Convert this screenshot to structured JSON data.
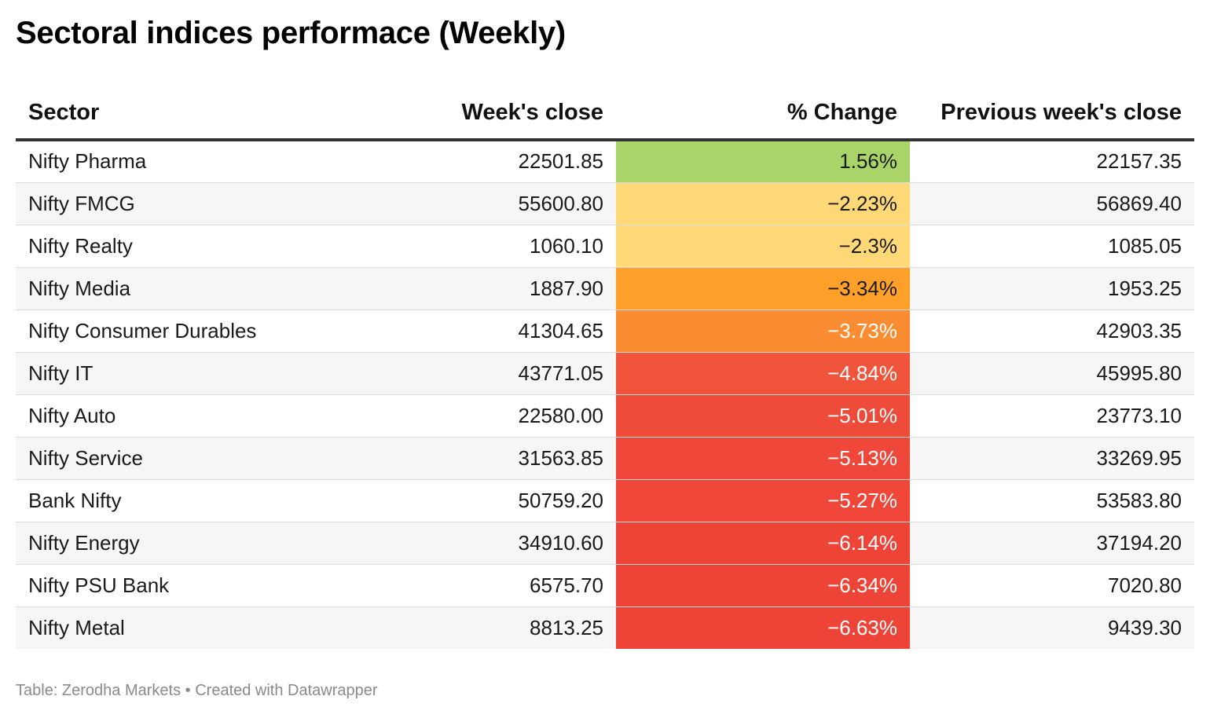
{
  "title": "Sectoral indices performace (Weekly)",
  "footer": "Table: Zerodha Markets • Created with Datawrapper",
  "chart_data": {
    "type": "table",
    "columns": [
      "Sector",
      "Week's close",
      "% Change",
      "Previous week's close"
    ],
    "rows": [
      {
        "sector": "Nifty Pharma",
        "close": "22501.85",
        "change": "1.56%",
        "prev_close": "22157.35",
        "change_value": 1.56,
        "color": "#a8d469",
        "text_color": "#1a1a1a"
      },
      {
        "sector": "Nifty FMCG",
        "close": "55600.80",
        "change": "−2.23%",
        "prev_close": "56869.40",
        "change_value": -2.23,
        "color": "#ffd878",
        "text_color": "#1a1a1a"
      },
      {
        "sector": "Nifty Realty",
        "close": "1060.10",
        "change": "−2.3%",
        "prev_close": "1085.05",
        "change_value": -2.3,
        "color": "#ffd878",
        "text_color": "#1a1a1a"
      },
      {
        "sector": "Nifty Media",
        "close": "1887.90",
        "change": "−3.34%",
        "prev_close": "1953.25",
        "change_value": -3.34,
        "color": "#ffa02a",
        "text_color": "#1a1a1a"
      },
      {
        "sector": "Nifty Consumer Durables",
        "close": "41304.65",
        "change": "−3.73%",
        "prev_close": "42903.35",
        "change_value": -3.73,
        "color": "#fa8c32",
        "text_color": "#ffffff"
      },
      {
        "sector": "Nifty IT",
        "close": "43771.05",
        "change": "−4.84%",
        "prev_close": "45995.80",
        "change_value": -4.84,
        "color": "#f0553c",
        "text_color": "#ffffff"
      },
      {
        "sector": "Nifty Auto",
        "close": "22580.00",
        "change": "−5.01%",
        "prev_close": "23773.10",
        "change_value": -5.01,
        "color": "#ef4b3b",
        "text_color": "#ffffff"
      },
      {
        "sector": "Nifty Service",
        "close": "31563.85",
        "change": "−5.13%",
        "prev_close": "33269.95",
        "change_value": -5.13,
        "color": "#ef483a",
        "text_color": "#ffffff"
      },
      {
        "sector": "Bank Nifty",
        "close": "50759.20",
        "change": "−5.27%",
        "prev_close": "53583.80",
        "change_value": -5.27,
        "color": "#ef4639",
        "text_color": "#ffffff"
      },
      {
        "sector": "Nifty Energy",
        "close": "34910.60",
        "change": "−6.14%",
        "prev_close": "37194.20",
        "change_value": -6.14,
        "color": "#ee4438",
        "text_color": "#ffffff"
      },
      {
        "sector": "Nifty PSU Bank",
        "close": "6575.70",
        "change": "−6.34%",
        "prev_close": "7020.80",
        "change_value": -6.34,
        "color": "#ee4438",
        "text_color": "#ffffff"
      },
      {
        "sector": "Nifty Metal",
        "close": "8813.25",
        "change": "−6.63%",
        "prev_close": "9439.30",
        "change_value": -6.63,
        "color": "#ee4438",
        "text_color": "#ffffff"
      }
    ]
  }
}
